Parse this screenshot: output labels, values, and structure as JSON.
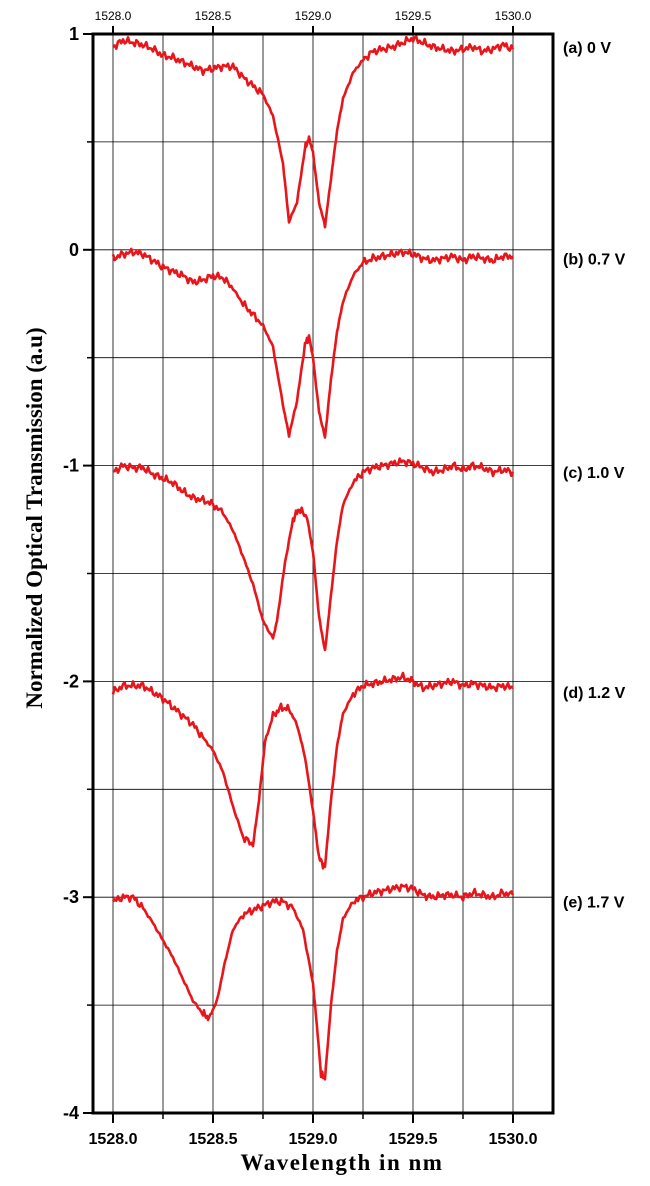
{
  "chart_data": {
    "type": "line",
    "title": "",
    "xlabel": "Wavelength in nm",
    "ylabel": "Normalized Optical Transmission (a.u)",
    "xlim": [
      1527.9,
      1530.2
    ],
    "ylim": [
      -4,
      1
    ],
    "x_ticks": [
      "1528.0",
      "1528.5",
      "1529.0",
      "1529.5",
      "1530.0"
    ],
    "x_tick_values": [
      1528.0,
      1528.5,
      1529.0,
      1529.5,
      1530.0
    ],
    "y_ticks": [
      "1",
      "0",
      "-1",
      "-2",
      "-3",
      "-4"
    ],
    "y_tick_values": [
      1,
      0,
      -1,
      -2,
      -3,
      -4
    ],
    "grid": true,
    "line_color": "#e8161b",
    "series": [
      {
        "name": "(a) 0 V",
        "x": [
          1528.0,
          1528.05,
          1528.1,
          1528.15,
          1528.2,
          1528.25,
          1528.3,
          1528.35,
          1528.4,
          1528.45,
          1528.5,
          1528.55,
          1528.6,
          1528.65,
          1528.7,
          1528.75,
          1528.8,
          1528.85,
          1528.88,
          1528.92,
          1528.96,
          1528.98,
          1529.0,
          1529.03,
          1529.06,
          1529.09,
          1529.12,
          1529.15,
          1529.2,
          1529.25,
          1529.3,
          1529.35,
          1529.4,
          1529.45,
          1529.5,
          1529.55,
          1529.6,
          1529.65,
          1529.7,
          1529.75,
          1529.8,
          1529.85,
          1529.9,
          1529.95,
          1530.0
        ],
        "y": [
          0.94,
          0.97,
          0.96,
          0.95,
          0.93,
          0.9,
          0.89,
          0.87,
          0.85,
          0.83,
          0.84,
          0.85,
          0.85,
          0.8,
          0.76,
          0.72,
          0.62,
          0.4,
          0.13,
          0.22,
          0.47,
          0.52,
          0.45,
          0.22,
          0.11,
          0.33,
          0.55,
          0.7,
          0.82,
          0.88,
          0.92,
          0.93,
          0.94,
          0.96,
          0.98,
          0.96,
          0.94,
          0.93,
          0.92,
          0.93,
          0.94,
          0.92,
          0.93,
          0.95,
          0.93
        ]
      },
      {
        "name": "(b) 0.7 V",
        "x": [
          1528.0,
          1528.05,
          1528.1,
          1528.15,
          1528.2,
          1528.25,
          1528.3,
          1528.35,
          1528.4,
          1528.45,
          1528.5,
          1528.55,
          1528.6,
          1528.65,
          1528.7,
          1528.75,
          1528.8,
          1528.85,
          1528.88,
          1528.92,
          1528.96,
          1528.98,
          1529.0,
          1529.03,
          1529.06,
          1529.09,
          1529.12,
          1529.15,
          1529.2,
          1529.25,
          1529.3,
          1529.35,
          1529.4,
          1529.45,
          1529.5,
          1529.55,
          1529.6,
          1529.65,
          1529.7,
          1529.75,
          1529.8,
          1529.85,
          1529.9,
          1529.95,
          1530.0
        ],
        "y": [
          -0.04,
          -0.02,
          -0.01,
          -0.02,
          -0.05,
          -0.08,
          -0.1,
          -0.12,
          -0.15,
          -0.14,
          -0.12,
          -0.13,
          -0.18,
          -0.25,
          -0.3,
          -0.35,
          -0.45,
          -0.72,
          -0.86,
          -0.7,
          -0.44,
          -0.4,
          -0.5,
          -0.75,
          -0.87,
          -0.6,
          -0.38,
          -0.24,
          -0.12,
          -0.06,
          -0.04,
          -0.03,
          -0.02,
          -0.01,
          -0.02,
          -0.04,
          -0.05,
          -0.04,
          -0.03,
          -0.05,
          -0.03,
          -0.04,
          -0.05,
          -0.03,
          -0.03
        ]
      },
      {
        "name": "(c) 1.0 V",
        "x": [
          1528.0,
          1528.05,
          1528.1,
          1528.15,
          1528.2,
          1528.25,
          1528.3,
          1528.35,
          1528.4,
          1528.45,
          1528.5,
          1528.55,
          1528.6,
          1528.65,
          1528.7,
          1528.75,
          1528.8,
          1528.82,
          1528.86,
          1528.9,
          1528.93,
          1528.97,
          1529.0,
          1529.03,
          1529.06,
          1529.09,
          1529.12,
          1529.15,
          1529.2,
          1529.25,
          1529.3,
          1529.35,
          1529.4,
          1529.45,
          1529.5,
          1529.55,
          1529.6,
          1529.65,
          1529.7,
          1529.75,
          1529.8,
          1529.85,
          1529.9,
          1529.95,
          1530.0
        ],
        "y": [
          -1.03,
          -1.0,
          -1.01,
          -1.01,
          -1.04,
          -1.06,
          -1.08,
          -1.12,
          -1.15,
          -1.16,
          -1.18,
          -1.22,
          -1.3,
          -1.42,
          -1.55,
          -1.72,
          -1.8,
          -1.72,
          -1.45,
          -1.25,
          -1.2,
          -1.24,
          -1.4,
          -1.7,
          -1.86,
          -1.6,
          -1.35,
          -1.18,
          -1.08,
          -1.03,
          -1.01,
          -1.0,
          -0.99,
          -0.98,
          -0.99,
          -1.01,
          -1.03,
          -1.02,
          -1.0,
          -1.02,
          -1.0,
          -1.01,
          -1.03,
          -1.02,
          -1.03
        ]
      },
      {
        "name": "(d) 1.2 V",
        "x": [
          1528.0,
          1528.05,
          1528.1,
          1528.15,
          1528.2,
          1528.25,
          1528.3,
          1528.35,
          1528.4,
          1528.45,
          1528.5,
          1528.55,
          1528.6,
          1528.65,
          1528.7,
          1528.73,
          1528.76,
          1528.8,
          1528.84,
          1528.88,
          1528.92,
          1528.96,
          1529.0,
          1529.03,
          1529.06,
          1529.09,
          1529.12,
          1529.15,
          1529.2,
          1529.25,
          1529.3,
          1529.35,
          1529.4,
          1529.45,
          1529.5,
          1529.55,
          1529.6,
          1529.65,
          1529.7,
          1529.75,
          1529.8,
          1529.85,
          1529.9,
          1529.95,
          1530.0
        ],
        "y": [
          -2.05,
          -2.02,
          -2.02,
          -2.02,
          -2.05,
          -2.08,
          -2.12,
          -2.16,
          -2.2,
          -2.26,
          -2.32,
          -2.42,
          -2.58,
          -2.72,
          -2.76,
          -2.55,
          -2.28,
          -2.16,
          -2.12,
          -2.13,
          -2.2,
          -2.35,
          -2.6,
          -2.82,
          -2.86,
          -2.55,
          -2.3,
          -2.15,
          -2.06,
          -2.02,
          -2.01,
          -2.0,
          -1.99,
          -1.98,
          -2.0,
          -2.03,
          -2.02,
          -2.01,
          -2.0,
          -2.02,
          -2.01,
          -2.02,
          -2.03,
          -2.02,
          -2.03
        ]
      },
      {
        "name": "(e) 1.7 V",
        "x": [
          1528.0,
          1528.05,
          1528.1,
          1528.15,
          1528.2,
          1528.25,
          1528.3,
          1528.35,
          1528.4,
          1528.45,
          1528.48,
          1528.52,
          1528.56,
          1528.6,
          1528.65,
          1528.7,
          1528.75,
          1528.8,
          1528.85,
          1528.9,
          1528.95,
          1529.0,
          1529.02,
          1529.04,
          1529.06,
          1529.09,
          1529.12,
          1529.15,
          1529.2,
          1529.25,
          1529.3,
          1529.35,
          1529.4,
          1529.45,
          1529.5,
          1529.55,
          1529.6,
          1529.65,
          1529.7,
          1529.75,
          1529.8,
          1529.85,
          1529.9,
          1529.95,
          1530.0
        ],
        "y": [
          -3.02,
          -3.0,
          -3.0,
          -3.05,
          -3.12,
          -3.2,
          -3.28,
          -3.38,
          -3.48,
          -3.54,
          -3.56,
          -3.48,
          -3.3,
          -3.15,
          -3.08,
          -3.06,
          -3.04,
          -3.02,
          -3.02,
          -3.05,
          -3.15,
          -3.4,
          -3.6,
          -3.82,
          -3.84,
          -3.5,
          -3.25,
          -3.1,
          -3.02,
          -3.0,
          -2.98,
          -2.97,
          -2.96,
          -2.95,
          -2.96,
          -2.99,
          -3.0,
          -2.99,
          -2.99,
          -3.0,
          -2.98,
          -2.99,
          -3.0,
          -2.98,
          -2.99
        ]
      }
    ]
  }
}
